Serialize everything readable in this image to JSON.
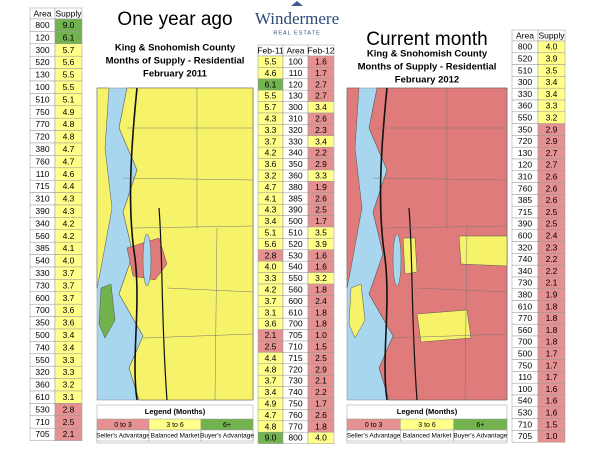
{
  "left_table": {
    "headers": [
      "Area",
      "Supply"
    ],
    "rows": [
      [
        800,
        "9.0"
      ],
      [
        120,
        "6.1"
      ],
      [
        300,
        "5.7"
      ],
      [
        520,
        "5.6"
      ],
      [
        130,
        "5.5"
      ],
      [
        100,
        "5.5"
      ],
      [
        510,
        "5.1"
      ],
      [
        750,
        "4.9"
      ],
      [
        770,
        "4.8"
      ],
      [
        720,
        "4.8"
      ],
      [
        380,
        "4.7"
      ],
      [
        760,
        "4.7"
      ],
      [
        110,
        "4.6"
      ],
      [
        715,
        "4.4"
      ],
      [
        310,
        "4.3"
      ],
      [
        390,
        "4.3"
      ],
      [
        340,
        "4.2"
      ],
      [
        560,
        "4.2"
      ],
      [
        385,
        "4.1"
      ],
      [
        540,
        "4.0"
      ],
      [
        330,
        "3.7"
      ],
      [
        730,
        "3.7"
      ],
      [
        600,
        "3.7"
      ],
      [
        700,
        "3.6"
      ],
      [
        350,
        "3.6"
      ],
      [
        500,
        "3.4"
      ],
      [
        740,
        "3.4"
      ],
      [
        550,
        "3.3"
      ],
      [
        320,
        "3.3"
      ],
      [
        360,
        "3.2"
      ],
      [
        610,
        "3.1"
      ],
      [
        530,
        "2.8"
      ],
      [
        710,
        "2.5"
      ],
      [
        705,
        "2.1"
      ]
    ]
  },
  "left_panel": {
    "title": "One year ago",
    "subtitles": [
      "King & Snohomish County",
      "Months of Supply - Residential",
      "February 2011"
    ]
  },
  "logo": {
    "name": "Windermere",
    "tagline": "REAL ESTATE"
  },
  "middle_table": {
    "headers": [
      "Feb-11",
      "Area",
      "Feb-12"
    ],
    "rows": [
      [
        "5.5",
        100,
        "1.6"
      ],
      [
        "4.6",
        110,
        "1.7"
      ],
      [
        "6.1",
        120,
        "2.7"
      ],
      [
        "5.5",
        130,
        "2.7"
      ],
      [
        "5.7",
        300,
        "3.4"
      ],
      [
        "4.3",
        310,
        "2.6"
      ],
      [
        "3.3",
        320,
        "2.3"
      ],
      [
        "3.7",
        330,
        "3.4"
      ],
      [
        "4.2",
        340,
        "2.2"
      ],
      [
        "3.6",
        350,
        "2.9"
      ],
      [
        "3.2",
        360,
        "3.3"
      ],
      [
        "4.7",
        380,
        "1.9"
      ],
      [
        "4.1",
        385,
        "2.6"
      ],
      [
        "4.3",
        390,
        "2.5"
      ],
      [
        "3.4",
        500,
        "1.7"
      ],
      [
        "5.1",
        510,
        "3.5"
      ],
      [
        "5.6",
        520,
        "3.9"
      ],
      [
        "2.8",
        530,
        "1.6"
      ],
      [
        "4.0",
        540,
        "1.6"
      ],
      [
        "3.3",
        550,
        "3.2"
      ],
      [
        "4.2",
        560,
        "1.8"
      ],
      [
        "3.7",
        600,
        "2.4"
      ],
      [
        "3.1",
        610,
        "1.8"
      ],
      [
        "3.6",
        700,
        "1.8"
      ],
      [
        "2.1",
        705,
        "1.0"
      ],
      [
        "2.5",
        710,
        "1.5"
      ],
      [
        "4.4",
        715,
        "2.5"
      ],
      [
        "4.8",
        720,
        "2.9"
      ],
      [
        "3.7",
        730,
        "2.1"
      ],
      [
        "3.4",
        740,
        "2.2"
      ],
      [
        "4.9",
        750,
        "1.7"
      ],
      [
        "4.7",
        760,
        "2.6"
      ],
      [
        "4.8",
        770,
        "1.8"
      ],
      [
        "9.0",
        800,
        "4.0"
      ]
    ]
  },
  "right_panel": {
    "title": "Current month",
    "subtitles": [
      "King & Snohomish County",
      "Months of Supply - Residential",
      "February 2012"
    ]
  },
  "right_table": {
    "headers": [
      "Area",
      "Supply"
    ],
    "rows": [
      [
        800,
        "4.0"
      ],
      [
        520,
        "3.9"
      ],
      [
        510,
        "3.5"
      ],
      [
        300,
        "3.4"
      ],
      [
        330,
        "3.4"
      ],
      [
        360,
        "3.3"
      ],
      [
        550,
        "3.2"
      ],
      [
        350,
        "2.9"
      ],
      [
        720,
        "2.9"
      ],
      [
        130,
        "2.7"
      ],
      [
        120,
        "2.7"
      ],
      [
        310,
        "2.6"
      ],
      [
        760,
        "2.6"
      ],
      [
        385,
        "2.6"
      ],
      [
        715,
        "2.5"
      ],
      [
        390,
        "2.5"
      ],
      [
        600,
        "2.4"
      ],
      [
        320,
        "2.3"
      ],
      [
        740,
        "2.2"
      ],
      [
        340,
        "2.2"
      ],
      [
        730,
        "2.1"
      ],
      [
        380,
        "1.9"
      ],
      [
        610,
        "1.8"
      ],
      [
        770,
        "1.8"
      ],
      [
        560,
        "1.8"
      ],
      [
        700,
        "1.8"
      ],
      [
        500,
        "1.7"
      ],
      [
        750,
        "1.7"
      ],
      [
        110,
        "1.7"
      ],
      [
        100,
        "1.6"
      ],
      [
        540,
        "1.6"
      ],
      [
        530,
        "1.6"
      ],
      [
        710,
        "1.5"
      ],
      [
        705,
        "1.0"
      ]
    ]
  },
  "legend": {
    "title": "Legend (Months)",
    "items": [
      {
        "label": "0 to 3",
        "caption": "Seller's Advantage",
        "from": 0,
        "color": "#e59191"
      },
      {
        "label": "3 to 6",
        "caption": "Balanced Market",
        "from": 3,
        "color": "#ffff8a"
      },
      {
        "label": "6+",
        "caption": "Buyer's Advantage",
        "from": 6,
        "color": "#72b24f"
      }
    ]
  }
}
